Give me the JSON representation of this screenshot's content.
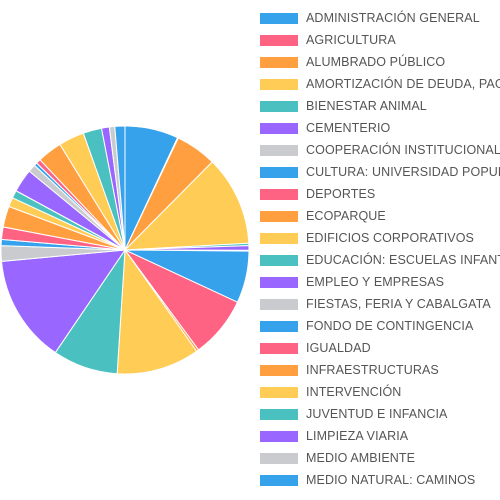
{
  "chart_data": {
    "type": "pie",
    "title": "",
    "legend_position": "right",
    "categories": [
      "ADMINISTRACIÓN GENERAL",
      "AGRICULTURA",
      "ALUMBRADO PÚBLICO",
      "AMORTIZACIÓN DE DEUDA, PAGO",
      "BIENESTAR ANIMAL",
      "CEMENTERIO",
      "COOPERACIÓN INSTITUCIONAL",
      "CULTURA: UNIVERSIDAD POPULAR",
      "DEPORTES",
      "ECOPARQUE",
      "EDIFICIOS CORPORATIVOS",
      "EDUCACIÓN: ESCUELAS INFANTILES",
      "EMPLEO Y EMPRESAS",
      "FIESTAS, FERIA Y CABALGATA",
      "FONDO DE CONTINGENCIA",
      "IGUALDAD",
      "INFRAESTRUCTURAS",
      "INTERVENCIÓN",
      "JUVENTUD E INFANCIA",
      "LIMPIEZA VIARIA",
      "MEDIO AMBIENTE",
      "MEDIO NATURAL: CAMINOS"
    ],
    "slices": [
      {
        "label": "ADMINISTRACIÓN GENERAL",
        "value": 6.9
      },
      {
        "label": "AGRICULTURA",
        "value": 0.1
      },
      {
        "label": "ALUMBRADO PÚBLICO",
        "value": 5.3
      },
      {
        "label": "AMORTIZACIÓN DE DEUDA, PAGO",
        "value": 11.6
      },
      {
        "label": "BIENESTAR ANIMAL",
        "value": 0.3
      },
      {
        "label": "CEMENTERIO",
        "value": 0.6
      },
      {
        "label": "COOPERACIÓN INSTITUCIONAL",
        "value": 0.1
      },
      {
        "label": "CULTURA: UNIVERSIDAD POPULAR",
        "value": 6.7
      },
      {
        "label": "DEPORTES",
        "value": 7.9
      },
      {
        "label": "ECOPARQUE",
        "value": 0.3
      },
      {
        "label": "EDIFICIOS CORPORATIVOS",
        "value": 10.7
      },
      {
        "label": "EDUCACIÓN: ESCUELAS INFANTILES",
        "value": 8.4
      },
      {
        "label": "EMPLEO Y EMPRESAS",
        "value": 13.9
      },
      {
        "label": "FIESTAS, FERIA Y CABALGATA",
        "value": 2.0
      },
      {
        "label": "FONDO DE CONTINGENCIA",
        "value": 0.8
      },
      {
        "label": "IGUALDAD",
        "value": 1.6
      },
      {
        "label": "INFRAESTRUCTURAS",
        "value": 2.7
      },
      {
        "label": "INTERVENCIÓN",
        "value": 1.2
      },
      {
        "label": "JUVENTUD E INFANCIA",
        "value": 1.0
      },
      {
        "label": "LIMPIEZA VIARIA",
        "value": 3.0
      },
      {
        "label": "MEDIO AMBIENTE",
        "value": 1.0
      },
      {
        "label": "MEDIO NATURAL: CAMINOS",
        "value": 0.4
      },
      {
        "label": "",
        "value": 0.6
      },
      {
        "label": "",
        "value": 3.2
      },
      {
        "label": "",
        "value": 3.3
      },
      {
        "label": "",
        "value": 2.4
      },
      {
        "label": "",
        "value": 1.0
      },
      {
        "label": "",
        "value": 0.7
      },
      {
        "label": "",
        "value": 1.3
      }
    ],
    "palette": [
      "#36a2eb",
      "#ff6384",
      "#ff9f40",
      "#ffcd56",
      "#4bc0c0",
      "#9966ff",
      "#c9cbcf"
    ]
  }
}
